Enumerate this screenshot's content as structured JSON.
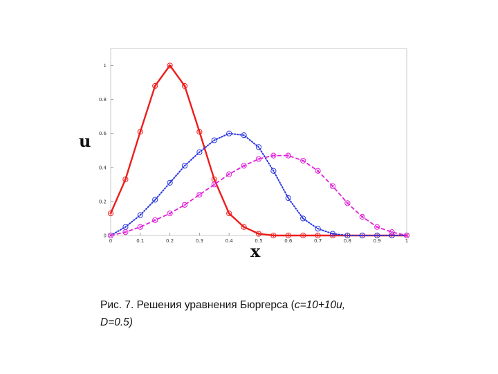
{
  "chart_data": {
    "type": "line",
    "xlabel": "x",
    "ylabel": "u",
    "xlim": [
      0,
      1
    ],
    "ylim": [
      0,
      1.1
    ],
    "x_ticks": [
      "0",
      "0.1",
      "0.2",
      "0.3",
      "0.4",
      "0.5",
      "0.6",
      "0.7",
      "0.8",
      "0.9",
      "1"
    ],
    "y_ticks": [
      "0",
      "0.2",
      "0.4",
      "0.6",
      "0.8",
      "1"
    ],
    "grid": false,
    "series": [
      {
        "color": "#ee1c1c",
        "style": "solid",
        "marker": "circle-plus",
        "x": [
          0,
          0.05,
          0.1,
          0.15,
          0.2,
          0.25,
          0.3,
          0.35,
          0.4,
          0.45,
          0.5,
          0.55,
          0.6,
          0.65,
          0.7,
          0.75,
          0.8,
          0.85,
          0.9,
          0.95,
          1.0
        ],
        "y": [
          0.13,
          0.33,
          0.61,
          0.88,
          1.0,
          0.88,
          0.61,
          0.33,
          0.13,
          0.05,
          0.01,
          0.0,
          0.0,
          0.0,
          0.0,
          0.0,
          0.0,
          0.0,
          0.0,
          0.0,
          0.0
        ]
      },
      {
        "color": "#2a36e0",
        "style": "dotted",
        "marker": "circle-dot",
        "x": [
          0,
          0.05,
          0.1,
          0.15,
          0.2,
          0.25,
          0.3,
          0.35,
          0.4,
          0.45,
          0.5,
          0.55,
          0.6,
          0.65,
          0.7,
          0.75,
          0.8,
          0.85,
          0.9,
          0.95,
          1.0
        ],
        "y": [
          0.0,
          0.05,
          0.12,
          0.21,
          0.31,
          0.41,
          0.49,
          0.56,
          0.6,
          0.59,
          0.52,
          0.38,
          0.22,
          0.1,
          0.04,
          0.01,
          0.0,
          0.0,
          0.0,
          0.0,
          0.0
        ]
      },
      {
        "color": "#e020d8",
        "style": "dashed",
        "marker": "circle-cross",
        "x": [
          0,
          0.05,
          0.1,
          0.15,
          0.2,
          0.25,
          0.3,
          0.35,
          0.4,
          0.45,
          0.5,
          0.55,
          0.6,
          0.65,
          0.7,
          0.75,
          0.8,
          0.85,
          0.9,
          0.95,
          1.0
        ],
        "y": [
          0.0,
          0.02,
          0.05,
          0.09,
          0.13,
          0.18,
          0.24,
          0.3,
          0.36,
          0.41,
          0.45,
          0.47,
          0.47,
          0.44,
          0.38,
          0.29,
          0.19,
          0.11,
          0.05,
          0.02,
          0.0
        ]
      }
    ]
  },
  "caption": {
    "lead": "Рис. 7. Решения уравнения Бюргерса (",
    "formula1": "c=10+10u,",
    "formula2": "D=0.5)"
  }
}
